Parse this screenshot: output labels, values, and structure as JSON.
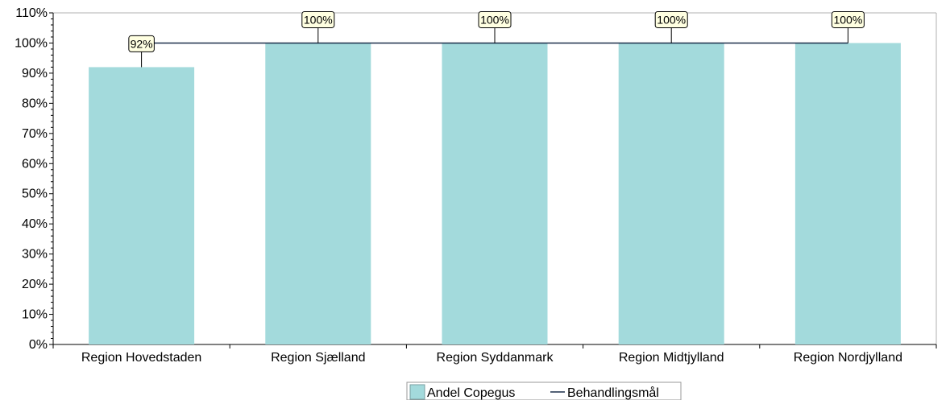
{
  "chart_data": {
    "type": "bar",
    "categories": [
      "Region Hovedstaden",
      "Region Sjælland",
      "Region Syddanmark",
      "Region Midtjylland",
      "Region Nordjylland"
    ],
    "series": [
      {
        "name": "Andel Copegus",
        "values": [
          92,
          100,
          100,
          100,
          100
        ],
        "color": "#a3dadc"
      },
      {
        "name": "Behandlingsmål",
        "type": "line",
        "values": [
          100,
          100,
          100,
          100,
          100
        ],
        "color": "#1c2f4a"
      }
    ],
    "data_labels": [
      "92%",
      "100%",
      "100%",
      "100%",
      "100%"
    ],
    "yticks": [
      "0%",
      "10%",
      "20%",
      "30%",
      "40%",
      "50%",
      "60%",
      "70%",
      "80%",
      "90%",
      "100%",
      "110%"
    ],
    "ylim": [
      0,
      110
    ],
    "legend_position": "bottom-center",
    "label_background": "#ffffe1"
  }
}
